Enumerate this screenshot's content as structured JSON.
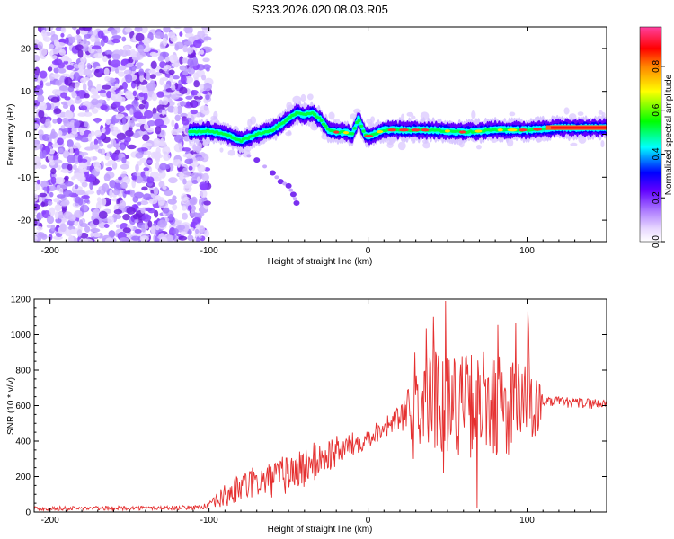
{
  "title": "S233.2026.020.08.03.R05",
  "chart_data": [
    {
      "type": "heatmap",
      "name": "spectrogram",
      "xlabel": "Height of straight line (km)",
      "ylabel": "Frequency (Hz)",
      "xlim": [
        -210,
        150
      ],
      "ylim": [
        -25,
        25
      ],
      "xticks": [
        -200,
        -100,
        0,
        100
      ],
      "xtick_labels": [
        "-200",
        "-100",
        "0",
        "100"
      ],
      "yticks": [
        -20,
        -10,
        0,
        10,
        20
      ],
      "ytick_labels": [
        "-20",
        "-10",
        "0",
        "10",
        "20"
      ],
      "ridge": {
        "x": [
          -112,
          -100,
          -90,
          -80,
          -70,
          -60,
          -52,
          -45,
          -40,
          -35,
          -30,
          -25,
          -20,
          -15,
          -10,
          -6,
          -2,
          0,
          10,
          20,
          40,
          60,
          80,
          100,
          120,
          150
        ],
        "y": [
          0.5,
          0.8,
          0,
          -1.5,
          0,
          1,
          3,
          5,
          4.5,
          5,
          3.5,
          1,
          0.5,
          0.5,
          0,
          3.5,
          0,
          -0.5,
          1,
          1,
          1,
          0.5,
          1,
          1,
          1.5,
          1.5
        ]
      },
      "branch": {
        "x": [
          -95,
          -80,
          -70,
          -60,
          -55,
          -50,
          -47,
          -45
        ],
        "y": [
          -1,
          -4,
          -6,
          -9,
          -11,
          -12,
          -14,
          -16
        ]
      },
      "noise_region": [
        -210,
        -100
      ],
      "colorbar": {
        "label": "Normalized spectral amplitude",
        "min": 0,
        "max": 1,
        "ticks": [
          "0.0",
          "0.2",
          "0.4",
          "0.6",
          "0.8"
        ],
        "colors": [
          "#ffffff",
          "#c8a0ff",
          "#8000ff",
          "#0000ff",
          "#00ffff",
          "#00ff00",
          "#ffff00",
          "#ff8000",
          "#ff0000"
        ]
      }
    },
    {
      "type": "line",
      "name": "snr",
      "xlabel": "Height of straight line (km)",
      "ylabel": "SNR (10 * v/v)",
      "xlim": [
        -210,
        150
      ],
      "ylim": [
        0,
        1200
      ],
      "xticks": [
        -200,
        -100,
        0,
        100
      ],
      "xtick_labels": [
        "-200",
        "-100",
        "0",
        "100"
      ],
      "yticks": [
        0,
        200,
        400,
        600,
        800,
        1000,
        1200
      ],
      "ytick_labels": [
        "0",
        "200",
        "400",
        "600",
        "800",
        "1000",
        "1200"
      ],
      "color": "#e53030",
      "envelope": {
        "x": [
          -210,
          -150,
          -110,
          -100,
          -90,
          -80,
          -70,
          -60,
          -50,
          -40,
          -30,
          -20,
          -10,
          0,
          10,
          20,
          30,
          40,
          50,
          60,
          70,
          80,
          90,
          100,
          105,
          110,
          120,
          130,
          150
        ],
        "base": [
          20,
          22,
          25,
          35,
          90,
          140,
          170,
          180,
          220,
          250,
          300,
          340,
          380,
          420,
          480,
          530,
          580,
          640,
          640,
          600,
          610,
          600,
          600,
          590,
          590,
          620,
          620,
          615,
          610
        ],
        "amplitude": [
          12,
          12,
          12,
          20,
          70,
          90,
          90,
          100,
          120,
          120,
          110,
          90,
          70,
          60,
          60,
          70,
          200,
          300,
          300,
          300,
          300,
          300,
          280,
          280,
          280,
          30,
          30,
          30,
          30
        ]
      }
    }
  ]
}
